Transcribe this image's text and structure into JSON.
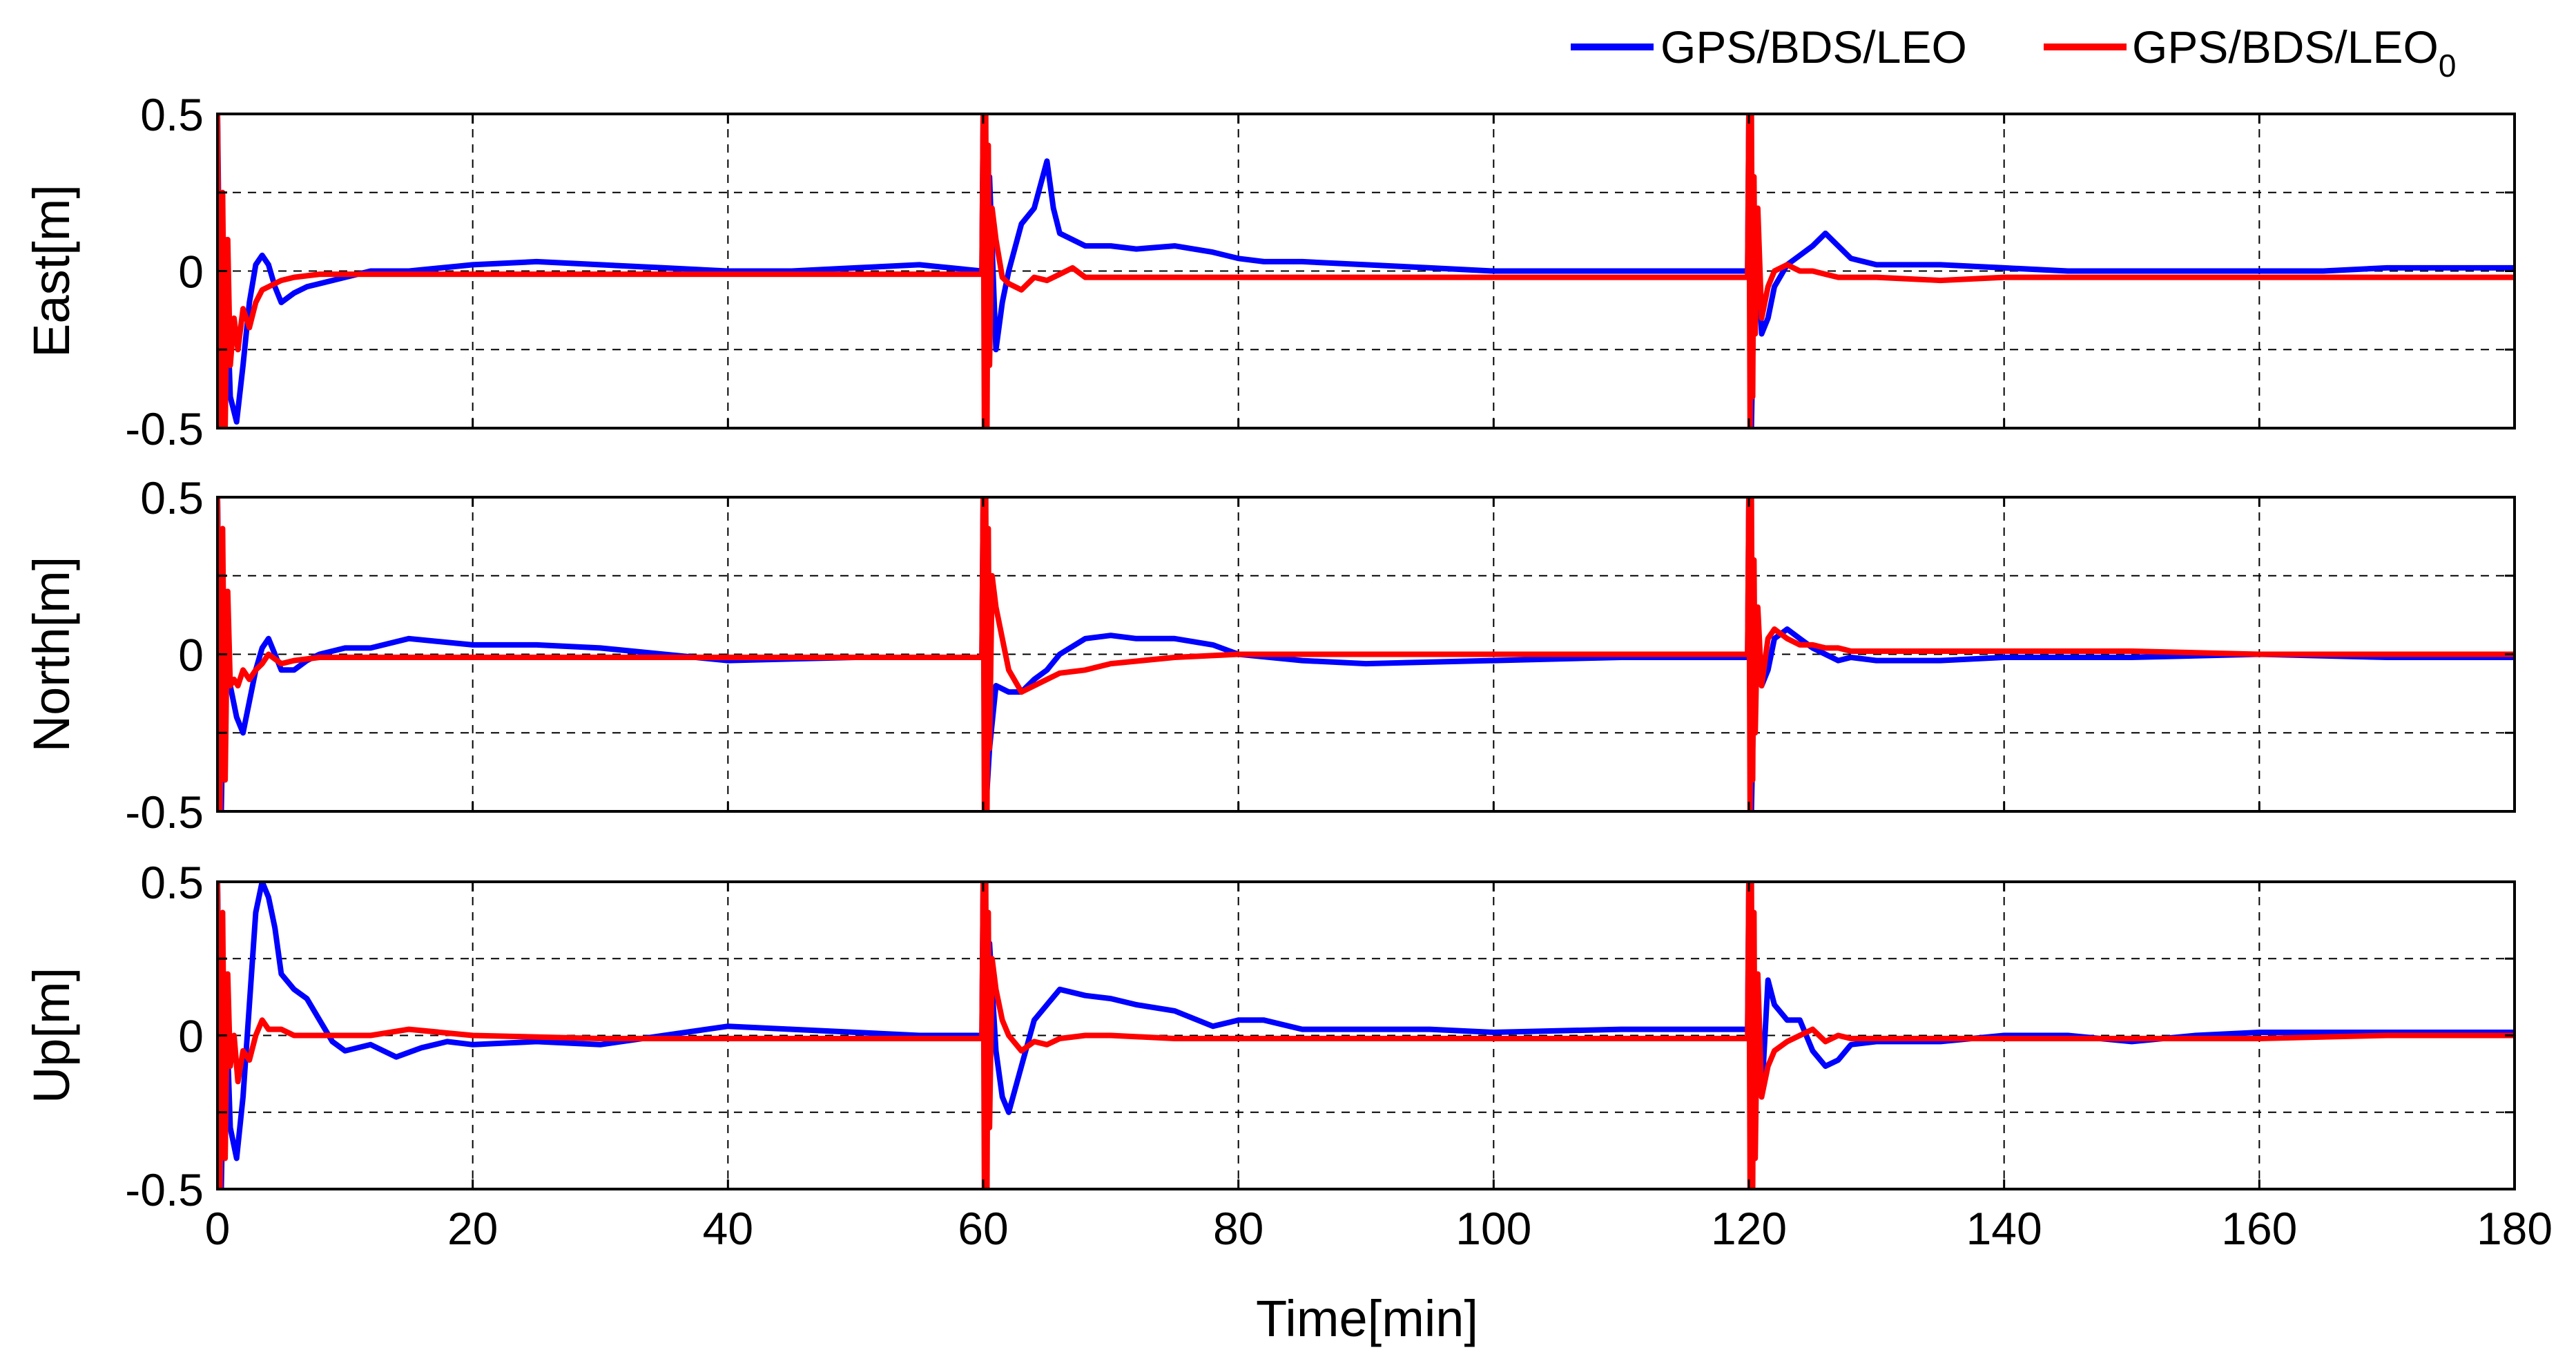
{
  "chart_data": {
    "type": "line",
    "xlabel": "Time[min]",
    "xlim": [
      0,
      180
    ],
    "x_ticks": [
      0,
      20,
      40,
      60,
      80,
      100,
      120,
      140,
      160,
      180
    ],
    "x_tick_labels": [
      "0",
      "20",
      "40",
      "60",
      "80",
      "100",
      "120",
      "140",
      "160",
      "180"
    ],
    "legend": {
      "placement": "top-right",
      "entries": [
        {
          "label": "GPS/BDS/LEO",
          "color": "#0000ff"
        },
        {
          "label": "GPS/BDS/LEO",
          "subscript": "0",
          "color": "#ff0000"
        }
      ]
    },
    "grid": true,
    "panels": [
      {
        "ylabel": "East[m]",
        "ylim": [
          -0.5,
          0.5
        ],
        "y_ticks": [
          -0.5,
          0,
          0.5
        ],
        "y_tick_labels": [
          "-0.5",
          "0",
          "0.5"
        ],
        "series": [
          {
            "name": "GPS/BDS/LEO",
            "color": "#0000ff",
            "x": [
              0,
              0.3,
              0.6,
              1,
              1.5,
              2,
              2.5,
              3,
              3.5,
              4,
              4.5,
              5,
              6,
              7,
              8,
              10,
              12,
              15,
              20,
              25,
              30,
              35,
              40,
              45,
              50,
              55,
              59.9,
              60,
              60.2,
              60.5,
              61,
              61.5,
              62,
              63,
              64,
              65,
              65.5,
              66,
              67,
              68,
              70,
              72,
              75,
              78,
              80,
              82,
              85,
              90,
              95,
              100,
              105,
              110,
              115,
              119.9,
              120,
              120.2,
              120.5,
              121,
              121.5,
              122,
              123,
              124,
              125,
              126,
              127,
              128,
              130,
              132,
              135,
              140,
              145,
              150,
              155,
              160,
              165,
              170,
              175,
              180
            ],
            "y": [
              0.5,
              -0.5,
              0.1,
              -0.4,
              -0.48,
              -0.3,
              -0.1,
              0.02,
              0.05,
              0.02,
              -0.05,
              -0.1,
              -0.07,
              -0.05,
              -0.04,
              -0.02,
              0.0,
              0.0,
              0.02,
              0.03,
              0.02,
              0.01,
              0.0,
              0.0,
              0.01,
              0.02,
              0.0,
              0.5,
              -0.5,
              0.3,
              -0.25,
              -0.1,
              0.0,
              0.15,
              0.2,
              0.35,
              0.2,
              0.12,
              0.1,
              0.08,
              0.08,
              0.07,
              0.08,
              0.06,
              0.04,
              0.03,
              0.03,
              0.02,
              0.01,
              0.0,
              0.0,
              0.0,
              0.0,
              0.0,
              0.5,
              -0.5,
              0.2,
              -0.2,
              -0.15,
              -0.05,
              0.02,
              0.05,
              0.08,
              0.12,
              0.08,
              0.04,
              0.02,
              0.02,
              0.02,
              0.01,
              0.0,
              0.0,
              0.0,
              0.0,
              0.0,
              0.01,
              0.01,
              0.01
            ]
          },
          {
            "name": "GPS/BDS/LEO0",
            "color": "#ff0000",
            "x": [
              0,
              0.2,
              0.4,
              0.6,
              0.8,
              1,
              1.3,
              1.6,
              2,
              2.5,
              3,
              3.5,
              4,
              5,
              6,
              8,
              10,
              15,
              20,
              30,
              40,
              50,
              59.9,
              60,
              60.1,
              60.2,
              60.3,
              60.4,
              60.5,
              60.7,
              61,
              61.5,
              62,
              63,
              64,
              65,
              66,
              67,
              68,
              70,
              75,
              80,
              90,
              100,
              110,
              119.9,
              120,
              120.1,
              120.2,
              120.3,
              120.4,
              120.5,
              120.7,
              121,
              121.5,
              122,
              123,
              124,
              125,
              126,
              127,
              128,
              130,
              135,
              140,
              150,
              160,
              170,
              180
            ],
            "y": [
              0.5,
              -0.5,
              0.25,
              -0.5,
              0.1,
              -0.3,
              -0.15,
              -0.25,
              -0.12,
              -0.18,
              -0.1,
              -0.06,
              -0.05,
              -0.03,
              -0.02,
              -0.01,
              -0.01,
              -0.01,
              -0.01,
              -0.01,
              -0.01,
              -0.01,
              -0.01,
              0.5,
              -0.5,
              0.5,
              -0.5,
              0.4,
              -0.3,
              0.2,
              0.1,
              -0.02,
              -0.04,
              -0.06,
              -0.02,
              -0.03,
              -0.01,
              0.01,
              -0.02,
              -0.02,
              -0.02,
              -0.02,
              -0.02,
              -0.02,
              -0.02,
              -0.02,
              0.5,
              -0.5,
              0.5,
              -0.4,
              0.3,
              -0.2,
              0.2,
              -0.15,
              -0.05,
              0.0,
              0.02,
              0.0,
              0.0,
              -0.01,
              -0.02,
              -0.02,
              -0.02,
              -0.03,
              -0.02,
              -0.02,
              -0.02,
              -0.02,
              -0.02
            ]
          }
        ]
      },
      {
        "ylabel": "North[m]",
        "ylim": [
          -0.5,
          0.5
        ],
        "y_ticks": [
          -0.5,
          0,
          0.5
        ],
        "y_tick_labels": [
          "-0.5",
          "0",
          "0.5"
        ],
        "series": [
          {
            "name": "GPS/BDS/LEO",
            "color": "#0000ff",
            "x": [
              0,
              0.3,
              0.6,
              1,
              1.5,
              2,
              2.5,
              3,
              3.5,
              4,
              4.5,
              5,
              6,
              7,
              8,
              10,
              12,
              15,
              20,
              25,
              30,
              35,
              40,
              50,
              59.9,
              60,
              60.2,
              60.5,
              61,
              62,
              63,
              64,
              65,
              66,
              68,
              70,
              72,
              75,
              78,
              80,
              85,
              90,
              100,
              110,
              119.9,
              120,
              120.2,
              120.5,
              121,
              121.5,
              122,
              123,
              124,
              125,
              126,
              127,
              128,
              130,
              135,
              140,
              150,
              160,
              170,
              180
            ],
            "y": [
              0.5,
              -0.5,
              0.2,
              -0.1,
              -0.2,
              -0.25,
              -0.15,
              -0.05,
              0.02,
              0.05,
              0.0,
              -0.05,
              -0.05,
              -0.02,
              0.0,
              0.02,
              0.02,
              0.05,
              0.03,
              0.03,
              0.02,
              0.0,
              -0.02,
              -0.01,
              -0.01,
              0.5,
              -0.5,
              -0.3,
              -0.1,
              -0.12,
              -0.12,
              -0.08,
              -0.05,
              0.0,
              0.05,
              0.06,
              0.05,
              0.05,
              0.03,
              0.0,
              -0.02,
              -0.03,
              -0.02,
              -0.01,
              -0.01,
              0.5,
              -0.5,
              0.1,
              -0.1,
              -0.05,
              0.05,
              0.08,
              0.05,
              0.02,
              0.0,
              -0.02,
              -0.01,
              -0.02,
              -0.02,
              -0.01,
              -0.01,
              0.0,
              -0.01,
              -0.01
            ]
          },
          {
            "name": "GPS/BDS/LEO0",
            "color": "#ff0000",
            "x": [
              0,
              0.2,
              0.4,
              0.6,
              0.8,
              1,
              1.3,
              1.6,
              2,
              2.5,
              3,
              3.5,
              4,
              5,
              6,
              8,
              10,
              15,
              20,
              30,
              40,
              50,
              59.9,
              60,
              60.1,
              60.2,
              60.3,
              60.4,
              60.5,
              60.7,
              61,
              62,
              63,
              64,
              65,
              66,
              68,
              70,
              75,
              80,
              90,
              100,
              110,
              119.9,
              120,
              120.1,
              120.2,
              120.3,
              120.4,
              120.5,
              120.7,
              121,
              121.5,
              122,
              123,
              124,
              125,
              126,
              127,
              128,
              130,
              140,
              150,
              160,
              170,
              180
            ],
            "y": [
              0.5,
              -0.5,
              0.4,
              -0.4,
              0.2,
              -0.1,
              -0.08,
              -0.1,
              -0.05,
              -0.08,
              -0.05,
              -0.03,
              0.0,
              -0.03,
              -0.02,
              -0.01,
              -0.01,
              -0.01,
              -0.01,
              -0.01,
              -0.01,
              -0.01,
              -0.01,
              0.5,
              -0.5,
              0.5,
              -0.5,
              0.4,
              -0.3,
              0.25,
              0.15,
              -0.05,
              -0.12,
              -0.1,
              -0.08,
              -0.06,
              -0.05,
              -0.03,
              -0.01,
              0.0,
              0.0,
              0.0,
              0.0,
              0.0,
              0.5,
              -0.5,
              0.5,
              -0.4,
              0.3,
              -0.25,
              0.15,
              -0.1,
              0.05,
              0.08,
              0.05,
              0.03,
              0.03,
              0.02,
              0.02,
              0.01,
              0.01,
              0.01,
              0.01,
              0.0,
              0.0,
              0.0
            ]
          }
        ]
      },
      {
        "ylabel": "Up[m]",
        "ylim": [
          -0.5,
          0.5
        ],
        "y_ticks": [
          -0.5,
          0,
          0.5
        ],
        "y_tick_labels": [
          "-0.5",
          "0",
          "0.5"
        ],
        "series": [
          {
            "name": "GPS/BDS/LEO",
            "color": "#0000ff",
            "x": [
              0,
              0.3,
              0.6,
              1,
              1.5,
              2,
              2.5,
              3,
              3.5,
              4,
              4.5,
              5,
              6,
              7,
              8,
              9,
              10,
              12,
              14,
              16,
              18,
              20,
              25,
              30,
              35,
              40,
              45,
              50,
              55,
              59.9,
              60,
              60.2,
              60.5,
              61,
              61.5,
              62,
              63,
              64,
              65,
              66,
              68,
              70,
              72,
              75,
              78,
              80,
              82,
              85,
              90,
              95,
              100,
              110,
              119.9,
              120,
              120.2,
              120.5,
              121,
              121.5,
              122,
              123,
              124,
              125,
              126,
              127,
              128,
              130,
              135,
              140,
              145,
              150,
              155,
              160,
              170,
              180
            ],
            "y": [
              0.5,
              -0.5,
              0.2,
              -0.3,
              -0.4,
              -0.2,
              0.1,
              0.4,
              0.5,
              0.45,
              0.35,
              0.2,
              0.15,
              0.12,
              0.05,
              -0.02,
              -0.05,
              -0.03,
              -0.07,
              -0.04,
              -0.02,
              -0.03,
              -0.02,
              -0.03,
              0.0,
              0.03,
              0.02,
              0.01,
              0.0,
              0.0,
              0.5,
              -0.5,
              0.3,
              -0.05,
              -0.2,
              -0.25,
              -0.1,
              0.05,
              0.1,
              0.15,
              0.13,
              0.12,
              0.1,
              0.08,
              0.03,
              0.05,
              0.05,
              0.02,
              0.02,
              0.02,
              0.01,
              0.02,
              0.02,
              0.5,
              -0.5,
              0.2,
              -0.2,
              0.18,
              0.1,
              0.05,
              0.05,
              -0.05,
              -0.1,
              -0.08,
              -0.03,
              -0.02,
              -0.02,
              0.0,
              0.0,
              -0.02,
              0.0,
              0.01,
              0.01,
              0.01
            ]
          },
          {
            "name": "GPS/BDS/LEO0",
            "color": "#ff0000",
            "x": [
              0,
              0.2,
              0.4,
              0.6,
              0.8,
              1,
              1.3,
              1.6,
              2,
              2.5,
              3,
              3.5,
              4,
              5,
              6,
              8,
              10,
              12,
              15,
              20,
              30,
              40,
              50,
              59.9,
              60,
              60.1,
              60.2,
              60.3,
              60.4,
              60.5,
              60.7,
              61,
              61.5,
              62,
              63,
              64,
              65,
              66,
              68,
              70,
              75,
              80,
              90,
              100,
              110,
              119.9,
              120,
              120.1,
              120.2,
              120.3,
              120.4,
              120.5,
              120.7,
              121,
              121.5,
              122,
              123,
              124,
              125,
              126,
              127,
              128,
              130,
              135,
              140,
              150,
              160,
              170,
              180
            ],
            "y": [
              0.5,
              -0.5,
              0.4,
              -0.4,
              0.2,
              -0.1,
              0.0,
              -0.15,
              -0.05,
              -0.08,
              0.0,
              0.05,
              0.02,
              0.02,
              0.0,
              0.0,
              0.0,
              0.0,
              0.02,
              0.0,
              -0.01,
              -0.01,
              -0.01,
              -0.01,
              0.5,
              -0.5,
              0.5,
              -0.5,
              0.4,
              -0.3,
              0.25,
              0.15,
              0.05,
              0.0,
              -0.05,
              -0.02,
              -0.03,
              -0.01,
              0.0,
              0.0,
              -0.01,
              -0.01,
              -0.01,
              -0.01,
              -0.01,
              -0.01,
              0.5,
              -0.5,
              0.5,
              -0.5,
              0.4,
              -0.4,
              0.2,
              -0.2,
              -0.1,
              -0.05,
              -0.02,
              0.0,
              0.02,
              -0.02,
              0.0,
              -0.01,
              -0.01,
              -0.01,
              -0.01,
              -0.01,
              -0.01,
              0.0,
              0.0
            ]
          }
        ]
      }
    ]
  }
}
